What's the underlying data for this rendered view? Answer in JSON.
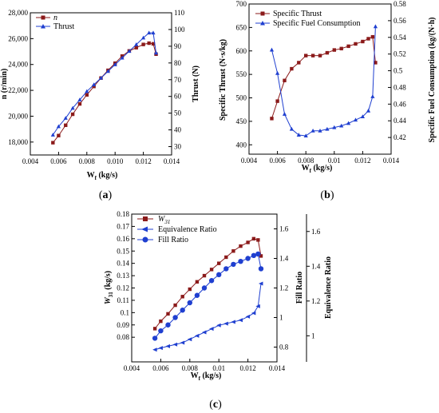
{
  "figure_labels": [
    {
      "open": "(",
      "letter": "a",
      "close": ")"
    },
    {
      "open": "(",
      "letter": "b",
      "close": ")"
    },
    {
      "open": "(",
      "letter": "c",
      "close": ")"
    }
  ],
  "chart_data": [
    {
      "type": "line",
      "xlabel_main": "W",
      "xlabel_sub": "f",
      "xlabel_unit": " (kg/s)",
      "ylabel_left": "n (r/min)",
      "ylabel_right": "Thrust (N)",
      "xlim": [
        0.004,
        0.014
      ],
      "xticks": [
        0.004,
        0.006,
        0.008,
        0.01,
        0.012,
        0.014
      ],
      "xtick_labels": [
        "0.004",
        "0.006",
        "0.008",
        "0.010",
        "0.012",
        "0.014"
      ],
      "ylim_left": [
        17000,
        28000
      ],
      "yticks_left": [
        18000,
        20000,
        22000,
        24000,
        26000,
        28000
      ],
      "ytick_labels_left": [
        "18,000",
        "20,000",
        "22,000",
        "24,000",
        "26,000",
        "28,000"
      ],
      "ylim_right": [
        25,
        110
      ],
      "yticks_right": [
        30,
        40,
        50,
        60,
        70,
        80,
        90,
        100,
        110
      ],
      "ytick_labels_right": [
        "30",
        "40",
        "50",
        "60",
        "70",
        "80",
        "90",
        "100",
        "110"
      ],
      "legend": "top-left",
      "series": [
        {
          "name": "n",
          "axis": "left",
          "color": "#8B1A1A",
          "marker": "square",
          "x": [
            0.0056,
            0.006,
            0.0065,
            0.007,
            0.0075,
            0.008,
            0.0085,
            0.009,
            0.0095,
            0.01,
            0.0105,
            0.011,
            0.0115,
            0.012,
            0.0124,
            0.0127,
            0.0129
          ],
          "y": [
            17950,
            18500,
            19300,
            20150,
            20950,
            21650,
            22300,
            22950,
            23550,
            24100,
            24650,
            25050,
            25300,
            25550,
            25650,
            25600,
            24800
          ]
        },
        {
          "name": "Thrust",
          "axis": "right",
          "color": "#1F3FD0",
          "marker": "triangle",
          "x": [
            0.0056,
            0.006,
            0.0065,
            0.007,
            0.0075,
            0.008,
            0.0085,
            0.009,
            0.0095,
            0.01,
            0.0105,
            0.011,
            0.0115,
            0.012,
            0.0124,
            0.0127,
            0.0129
          ],
          "y": [
            37,
            42,
            47,
            53,
            58,
            63,
            67,
            71,
            75,
            79,
            83,
            87,
            91,
            95,
            98,
            98,
            86
          ]
        }
      ]
    },
    {
      "type": "line",
      "xlabel_main": "W",
      "xlabel_sub": "f",
      "xlabel_unit": " (kg/s)",
      "ylabel_left": "Specific Thrust (N·s/kg)",
      "ylabel_right": "Specific Fuel Consumption (kg/(N·h)",
      "xlim": [
        0.004,
        0.014
      ],
      "xticks": [
        0.004,
        0.006,
        0.008,
        0.01,
        0.012,
        0.014
      ],
      "xtick_labels": [
        "0.004",
        "0.006",
        "0.008",
        "0.01",
        "0.012",
        "0.014"
      ],
      "ylim_left": [
        380,
        700
      ],
      "yticks_left": [
        400,
        450,
        500,
        550,
        600,
        650,
        700
      ],
      "ytick_labels_left": [
        "400",
        "450",
        "500",
        "550",
        "600",
        "650",
        "700"
      ],
      "ylim_right": [
        0.4,
        0.58
      ],
      "yticks_right": [
        0.42,
        0.44,
        0.46,
        0.48,
        0.5,
        0.52,
        0.54,
        0.56,
        0.58
      ],
      "ytick_labels_right": [
        "0.42",
        "0.44",
        "0.46",
        "0.48",
        "0.5",
        "0.52",
        "0.54",
        "0.56",
        "0.58"
      ],
      "legend": "top",
      "series": [
        {
          "name": "Specific Thrust",
          "axis": "left",
          "color": "#8B1A1A",
          "marker": "square",
          "x": [
            0.0056,
            0.006,
            0.0065,
            0.007,
            0.0075,
            0.008,
            0.0085,
            0.009,
            0.0095,
            0.01,
            0.0105,
            0.011,
            0.0115,
            0.012,
            0.0124,
            0.0127,
            0.0129
          ],
          "y": [
            456,
            493,
            537,
            562,
            575,
            590,
            590,
            590,
            596,
            602,
            605,
            610,
            615,
            620,
            626,
            630,
            575
          ]
        },
        {
          "name": "Specific Fuel Consumption",
          "axis": "right",
          "color": "#1F3FD0",
          "marker": "triangle",
          "x": [
            0.0056,
            0.006,
            0.0065,
            0.007,
            0.0075,
            0.008,
            0.0085,
            0.009,
            0.0095,
            0.01,
            0.0105,
            0.011,
            0.0115,
            0.012,
            0.0124,
            0.0127,
            0.0129
          ],
          "y": [
            0.525,
            0.497,
            0.448,
            0.43,
            0.423,
            0.422,
            0.428,
            0.428,
            0.43,
            0.432,
            0.434,
            0.437,
            0.441,
            0.445,
            0.452,
            0.469,
            0.553
          ]
        }
      ]
    },
    {
      "type": "line",
      "xlabel_main": "W",
      "xlabel_sub": "f",
      "xlabel_unit": " (kg/s)",
      "ylabel_left_main": "W",
      "ylabel_left_sub": "31",
      "ylabel_left_unit": " (kg/s)",
      "ylabel_right": "Fill Ratio",
      "ylabel_right2": "Equivalence Ratio",
      "xlim": [
        0.004,
        0.014
      ],
      "xticks": [
        0.004,
        0.006,
        0.008,
        0.01,
        0.012,
        0.014
      ],
      "xtick_labels": [
        "0.004",
        "0.006",
        "0.008",
        "0.01",
        "0.012",
        "0.014"
      ],
      "ylim_left": [
        0.06,
        0.18
      ],
      "yticks_left": [
        0.08,
        0.09,
        0.1,
        0.11,
        0.12,
        0.13,
        0.14,
        0.15,
        0.16,
        0.17,
        0.18
      ],
      "ytick_labels_left": [
        "0.08",
        "0.09",
        "0.1",
        "0.11",
        "0.12",
        "0.13",
        "0.14",
        "0.15",
        "0.16",
        "0.17",
        "0.18"
      ],
      "ylim_right": [
        0.7,
        1.7
      ],
      "yticks_right": [
        0.8,
        1.0,
        1.2,
        1.4,
        1.6
      ],
      "ytick_labels_right": [
        "0.8",
        "1",
        "1.2",
        "1.4",
        "1.6"
      ],
      "ylim_right2": [
        0.85,
        1.7
      ],
      "yticks_right2": [
        1.0,
        1.2,
        1.4,
        1.6
      ],
      "ytick_labels_right2": [
        "1",
        "1.2",
        "1.4",
        "1.6"
      ],
      "legend": "top-left",
      "series": [
        {
          "name_main": "W",
          "name_sub": "31",
          "axis": "left",
          "color": "#8B1A1A",
          "marker": "square",
          "x": [
            0.0056,
            0.006,
            0.0065,
            0.007,
            0.0075,
            0.008,
            0.0085,
            0.009,
            0.0095,
            0.01,
            0.0105,
            0.011,
            0.0115,
            0.012,
            0.0124,
            0.0127,
            0.0129
          ],
          "y": [
            0.087,
            0.093,
            0.099,
            0.106,
            0.113,
            0.119,
            0.125,
            0.13,
            0.135,
            0.14,
            0.145,
            0.15,
            0.154,
            0.157,
            0.16,
            0.159,
            0.146
          ]
        },
        {
          "name": "Equivalence Ratio",
          "axis": "right2",
          "color": "#1F3FD0",
          "marker": "triangle",
          "x": [
            0.0056,
            0.006,
            0.0065,
            0.007,
            0.0075,
            0.008,
            0.0085,
            0.009,
            0.0095,
            0.01,
            0.0105,
            0.011,
            0.0115,
            0.012,
            0.0124,
            0.0127,
            0.0129
          ],
          "y": [
            0.92,
            0.93,
            0.94,
            0.95,
            0.96,
            0.98,
            1.0,
            1.02,
            1.04,
            1.06,
            1.07,
            1.08,
            1.09,
            1.11,
            1.13,
            1.17,
            1.3
          ]
        },
        {
          "name": "Fill Ratio",
          "axis": "right",
          "color": "#1F3FD0",
          "marker": "circle",
          "x": [
            0.0056,
            0.006,
            0.0065,
            0.007,
            0.0075,
            0.008,
            0.0085,
            0.009,
            0.0095,
            0.01,
            0.0105,
            0.011,
            0.0115,
            0.012,
            0.0124,
            0.0127,
            0.0129
          ],
          "y": [
            0.86,
            0.91,
            0.95,
            1.0,
            1.05,
            1.1,
            1.15,
            1.2,
            1.25,
            1.29,
            1.33,
            1.36,
            1.38,
            1.4,
            1.42,
            1.43,
            1.33
          ]
        }
      ]
    }
  ]
}
